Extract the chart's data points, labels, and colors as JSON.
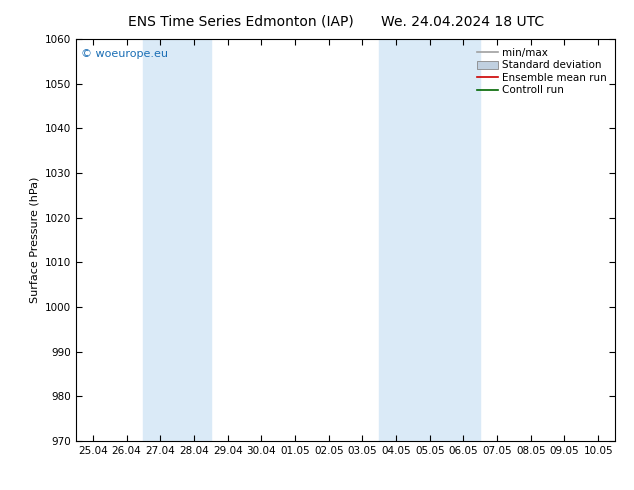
{
  "title_left": "ENS Time Series Edmonton (IAP)",
  "title_right": "We. 24.04.2024 18 UTC",
  "ylabel": "Surface Pressure (hPa)",
  "ylim": [
    970,
    1060
  ],
  "yticks": [
    970,
    980,
    990,
    1000,
    1010,
    1020,
    1030,
    1040,
    1050,
    1060
  ],
  "x_labels": [
    "25.04",
    "26.04",
    "27.04",
    "28.04",
    "29.04",
    "30.04",
    "01.05",
    "02.05",
    "03.05",
    "04.05",
    "05.05",
    "06.05",
    "07.05",
    "08.05",
    "09.05",
    "10.05"
  ],
  "shaded_bands": [
    {
      "xmin": 2,
      "xmax": 4
    },
    {
      "xmin": 9,
      "xmax": 12
    }
  ],
  "bg_color": "#ffffff",
  "shade_color": "#daeaf7",
  "legend_items": [
    {
      "label": "min/max",
      "color": "#a0a0a0",
      "style": "line"
    },
    {
      "label": "Standard deviation",
      "color": "#c0d0e0",
      "style": "box"
    },
    {
      "label": "Ensemble mean run",
      "color": "#cc0000",
      "style": "line"
    },
    {
      "label": "Controll run",
      "color": "#006600",
      "style": "line"
    }
  ],
  "watermark": "© woeurope.eu",
  "watermark_color": "#1a6eb5",
  "title_fontsize": 10,
  "axis_label_fontsize": 8,
  "tick_fontsize": 7.5,
  "legend_fontsize": 7.5
}
